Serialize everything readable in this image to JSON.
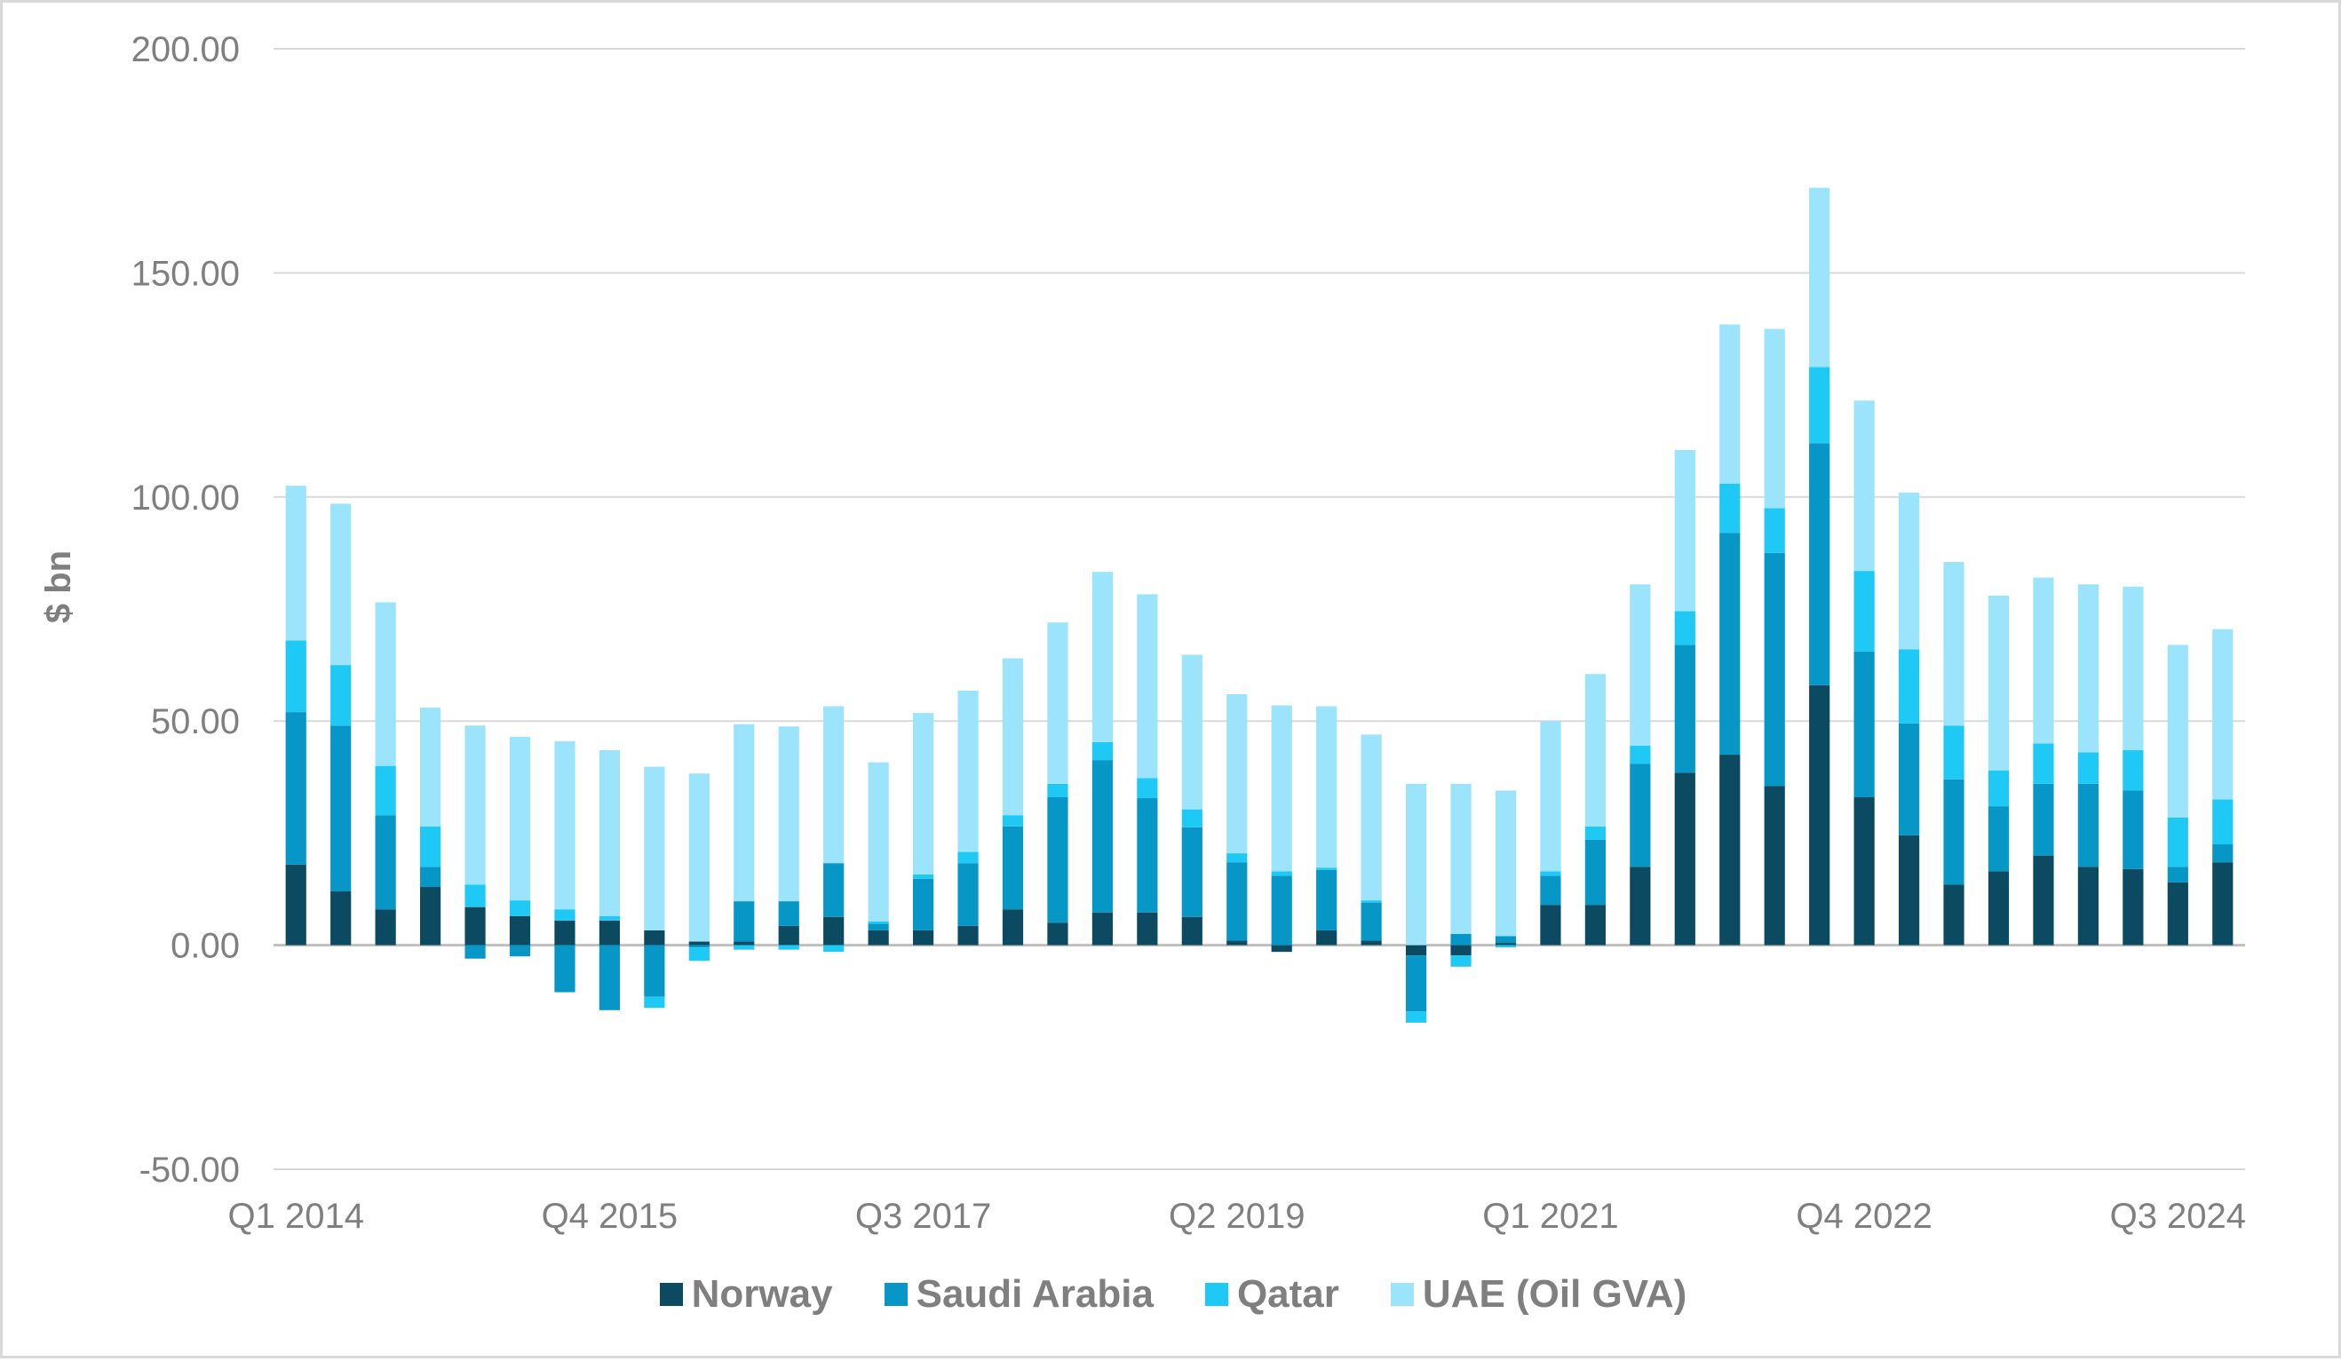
{
  "chart_data": {
    "type": "bar",
    "stacked": true,
    "title": "",
    "xlabel": "",
    "ylabel": "$ bn",
    "ylim": [
      -50,
      200
    ],
    "yticks": [
      "200.00",
      "150.00",
      "100.00",
      "50.00",
      "0.00",
      "-50.00"
    ],
    "ytick_values": [
      200,
      150,
      100,
      50,
      0,
      -50
    ],
    "grid": true,
    "legend_position": "bottom",
    "categories": [
      "Q1 2014",
      "Q2 2014",
      "Q3 2014",
      "Q4 2014",
      "Q1 2015",
      "Q2 2015",
      "Q3 2015",
      "Q4 2015",
      "Q1 2016",
      "Q2 2016",
      "Q3 2016",
      "Q4 2016",
      "Q1 2017",
      "Q2 2017",
      "Q3 2017",
      "Q4 2017",
      "Q1 2018",
      "Q2 2018",
      "Q3 2018",
      "Q4 2018",
      "Q1 2019",
      "Q2 2019",
      "Q3 2019",
      "Q4 2019",
      "Q1 2020",
      "Q2 2020",
      "Q3 2020",
      "Q4 2020",
      "Q1 2021",
      "Q2 2021",
      "Q3 2021",
      "Q4 2021",
      "Q1 2022",
      "Q2 2022",
      "Q3 2022",
      "Q4 2022",
      "Q1 2023",
      "Q2 2023",
      "Q3 2023",
      "Q4 2023",
      "Q1 2024",
      "Q2 2024",
      "Q3 2024",
      "Q4 2024"
    ],
    "xtick_labels": [
      {
        "index": 0,
        "label": "Q1 2014"
      },
      {
        "index": 7,
        "label": "Q4 2015"
      },
      {
        "index": 14,
        "label": "Q3 2017"
      },
      {
        "index": 21,
        "label": "Q2 2019"
      },
      {
        "index": 28,
        "label": "Q1 2021"
      },
      {
        "index": 35,
        "label": "Q4 2022"
      },
      {
        "index": 42,
        "label": "Q3 2024"
      }
    ],
    "series": [
      {
        "name": "Norway",
        "color": "#0b4a60",
        "values": [
          18,
          12,
          8,
          13,
          8.5,
          6.5,
          5.5,
          5.5,
          3.3,
          0.8,
          0.8,
          4.3,
          6.3,
          3.3,
          3.3,
          4.3,
          8,
          5,
          7.3,
          7.3,
          6.3,
          1,
          -1.5,
          3.3,
          1,
          -2.3,
          -2.3,
          0.5,
          9,
          9,
          17.5,
          38.5,
          42.5,
          35.5,
          58,
          33,
          24.5,
          13.5,
          16.5,
          20,
          17.5,
          17,
          14,
          18.5
        ]
      },
      {
        "name": "Saudi Arabia",
        "color": "#0697c7",
        "values": [
          34,
          37,
          21,
          4.5,
          -3,
          -2.5,
          -10.5,
          -14.5,
          -11.5,
          -0.5,
          9,
          5.5,
          12,
          1.5,
          11.5,
          14,
          18.5,
          28,
          34,
          25.5,
          20,
          17.5,
          15.5,
          13.5,
          8.5,
          -12.5,
          2.5,
          1.5,
          6.5,
          14.5,
          23,
          28.5,
          49.5,
          52,
          54,
          32.5,
          25,
          23.5,
          14.5,
          16,
          18.5,
          17.5,
          3.5,
          4
        ]
      },
      {
        "name": "Qatar",
        "color": "#1fc9f5",
        "values": [
          16,
          13.5,
          11,
          9,
          5,
          3.5,
          2.5,
          1,
          -2.5,
          -3,
          -1,
          -1,
          -1.5,
          0.5,
          1,
          2.5,
          2.5,
          3,
          4,
          4.5,
          4,
          2,
          1,
          0.5,
          0.5,
          -2.5,
          -2.5,
          -0.5,
          1,
          3,
          4,
          7.5,
          11,
          10,
          17,
          18,
          16.5,
          12,
          8,
          9,
          7,
          9,
          11,
          10
        ]
      },
      {
        "name": "UAE (Oil GVA)",
        "color": "#9be4fb",
        "values": [
          34.5,
          36,
          36.5,
          26.5,
          35.5,
          36.5,
          37.5,
          37,
          36.5,
          37.5,
          39.5,
          39,
          35,
          35.5,
          36,
          36,
          35,
          36,
          38,
          41,
          34.5,
          35.5,
          37,
          36,
          37,
          36,
          33.5,
          32.5,
          33.5,
          34,
          36,
          36,
          35.5,
          40,
          40,
          38,
          35,
          36.5,
          39,
          37,
          37.5,
          36.5,
          38.5,
          38
        ]
      }
    ]
  }
}
